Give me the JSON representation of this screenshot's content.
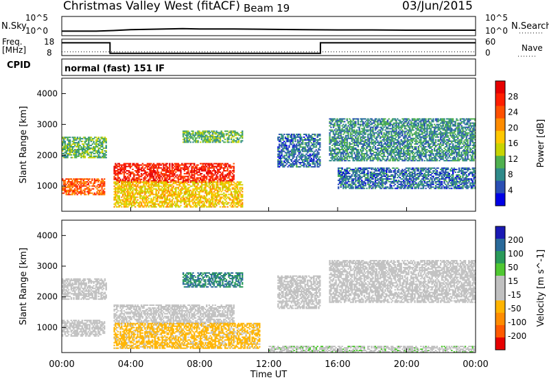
{
  "header": {
    "station": "Christmas Valley West (fitACF)",
    "beam": "Beam 19",
    "date": "03/Jun/2015"
  },
  "top_panels": {
    "nsky_label": "N.Sky",
    "nsky_ticks": [
      "10^5",
      "10^0"
    ],
    "nsky_right_ticks": [
      "10^5",
      "10^0"
    ],
    "nsearch_label": "N.Search",
    "freq_label_1": "Freq.",
    "freq_label_2": "[MHz]",
    "freq_ticks": [
      "18",
      "8"
    ],
    "nave_ticks": [
      "60",
      "0"
    ],
    "nave_label": "Nave",
    "cpid_label": "CPID",
    "cpid_text": "normal (fast) 151 IF"
  },
  "colors": {
    "power_scale": [
      "#0000e6",
      "#2a4fb4",
      "#2f8a8a",
      "#4fb04f",
      "#c8d400",
      "#ffc800",
      "#ff8c00",
      "#ff5000",
      "#ff1e00",
      "#e60000"
    ],
    "velocity_scale": [
      "#e60000",
      "#ff5a00",
      "#ff8c00",
      "#ffb400",
      "#c0c0c0",
      "#c0c0c0",
      "#50c832",
      "#2a9a5a",
      "#2a6a9a",
      "#1a1ab4"
    ],
    "ground_scatter": "#c0c0c0"
  },
  "chart_data": [
    {
      "type": "line",
      "title": "N.Sky",
      "y_ticks": [
        "10^0",
        "10^5"
      ],
      "x": [
        0,
        2,
        3,
        4,
        6,
        7,
        8,
        10,
        12,
        14,
        16,
        18,
        20,
        22,
        24
      ],
      "values": [
        0.6,
        0.6,
        0.8,
        1.1,
        1.3,
        1.4,
        1.3,
        1.3,
        1.2,
        1.1,
        1.0,
        1.0,
        0.9,
        0.9,
        0.9
      ]
    },
    {
      "type": "line",
      "title": "Freq. [MHz]",
      "ylim": [
        8,
        18
      ],
      "x": [
        0,
        2.8,
        2.8,
        15.0,
        15.0,
        24
      ],
      "values": [
        16.0,
        16.0,
        9.0,
        9.0,
        16.0,
        16.0
      ],
      "nave": 12,
      "nave_ylim": [
        0,
        60
      ]
    },
    {
      "type": "heatmap",
      "title": "Power [dB]",
      "xlabel": "Time UT",
      "ylabel": "Slant Range [km]",
      "x_ticks": [
        "00:00",
        "04:00",
        "08:00",
        "12:00",
        "16:00",
        "20:00",
        "00:00"
      ],
      "xlim": [
        0,
        24
      ],
      "ylim": [
        180,
        4500
      ],
      "y_ticks": [
        1000,
        2000,
        3000,
        4000
      ],
      "colorbar_label": "Power [dB]",
      "colorbar_ticks": [
        4,
        8,
        12,
        16,
        20,
        24,
        28
      ],
      "colorbar_range": [
        0,
        30
      ],
      "bands": [
        {
          "t0": 0.0,
          "t1": 2.6,
          "r0": 1900,
          "r1": 2600,
          "value": 10
        },
        {
          "t0": 0.0,
          "t1": 2.5,
          "r0": 700,
          "r1": 1250,
          "value": 22
        },
        {
          "t0": 3.0,
          "t1": 10.0,
          "r0": 1100,
          "r1": 1750,
          "value": 26
        },
        {
          "t0": 3.0,
          "t1": 10.5,
          "r0": 300,
          "r1": 1150,
          "value": 16
        },
        {
          "t0": 7.0,
          "t1": 10.5,
          "r0": 2400,
          "r1": 2800,
          "value": 10
        },
        {
          "t0": 12.5,
          "t1": 15.0,
          "r0": 1600,
          "r1": 2700,
          "value": 6
        },
        {
          "t0": 15.5,
          "t1": 24.0,
          "r0": 1800,
          "r1": 3200,
          "value": 8
        },
        {
          "t0": 16.0,
          "t1": 24.0,
          "r0": 900,
          "r1": 1600,
          "value": 6
        }
      ]
    },
    {
      "type": "heatmap",
      "title": "Velocity [m s^-1]",
      "xlabel": "Time UT",
      "ylabel": "Slant Range [km]",
      "x_ticks": [
        "00:00",
        "04:00",
        "08:00",
        "12:00",
        "16:00",
        "20:00",
        "00:00"
      ],
      "xlim": [
        0,
        24
      ],
      "ylim": [
        180,
        4500
      ],
      "y_ticks": [
        1000,
        2000,
        3000,
        4000
      ],
      "colorbar_label": "Velocity [m s^-1]",
      "colorbar_ticks": [
        "200",
        "100",
        "50",
        "15",
        "-15",
        "-50",
        "-100",
        "-200"
      ],
      "colorbar_range": [
        -250,
        250
      ],
      "bands": [
        {
          "t0": 0.0,
          "t1": 2.6,
          "r0": 1900,
          "r1": 2600,
          "value": 0
        },
        {
          "t0": 0.0,
          "t1": 2.5,
          "r0": 700,
          "r1": 1250,
          "value": 0
        },
        {
          "t0": 3.0,
          "t1": 10.0,
          "r0": 1100,
          "r1": 1750,
          "value": 0
        },
        {
          "t0": 3.0,
          "t1": 11.5,
          "r0": 300,
          "r1": 1150,
          "value": -60
        },
        {
          "t0": 7.0,
          "t1": 10.5,
          "r0": 2300,
          "r1": 2800,
          "value": 150
        },
        {
          "t0": 12.5,
          "t1": 15.0,
          "r0": 1600,
          "r1": 2700,
          "value": 0
        },
        {
          "t0": 15.5,
          "t1": 24.0,
          "r0": 1800,
          "r1": 3200,
          "value": 0
        },
        {
          "t0": 12.0,
          "t1": 24.0,
          "r0": 180,
          "r1": 400,
          "value": 40
        }
      ]
    }
  ]
}
